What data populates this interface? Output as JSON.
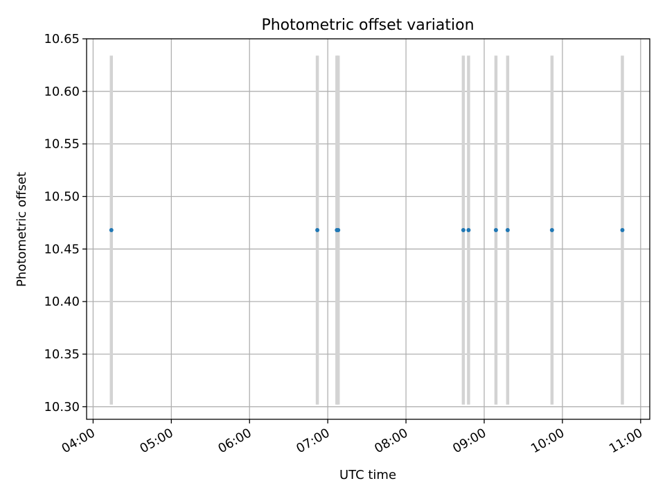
{
  "chart_data": {
    "type": "scatter",
    "title": "Photometric offset variation",
    "xlabel": "UTC time",
    "ylabel": "Photometric offset",
    "x_ticks": [
      "04:00",
      "05:00",
      "06:00",
      "07:00",
      "08:00",
      "09:00",
      "10:00",
      "11:00"
    ],
    "y_ticks": [
      "10.30",
      "10.35",
      "10.40",
      "10.45",
      "10.50",
      "10.55",
      "10.60",
      "10.65"
    ],
    "xlim": [
      "03:55",
      "11:07"
    ],
    "ylim": [
      10.288,
      10.65
    ],
    "grid": true,
    "colors": {
      "points": "#1f77b4",
      "errorbars": "#d3d3d3",
      "grid": "#b0b0b0"
    },
    "points": [
      {
        "x": "04:14",
        "y": 10.468,
        "err": 0.166
      },
      {
        "x": "06:52",
        "y": 10.468,
        "err": 0.166
      },
      {
        "x": "07:07",
        "y": 10.468,
        "err": 0.166
      },
      {
        "x": "07:08",
        "y": 10.468,
        "err": 0.166
      },
      {
        "x": "08:44",
        "y": 10.468,
        "err": 0.166
      },
      {
        "x": "08:48",
        "y": 10.468,
        "err": 0.166
      },
      {
        "x": "09:09",
        "y": 10.468,
        "err": 0.166
      },
      {
        "x": "09:18",
        "y": 10.468,
        "err": 0.166
      },
      {
        "x": "09:52",
        "y": 10.468,
        "err": 0.166
      },
      {
        "x": "10:46",
        "y": 10.468,
        "err": 0.166
      }
    ]
  }
}
